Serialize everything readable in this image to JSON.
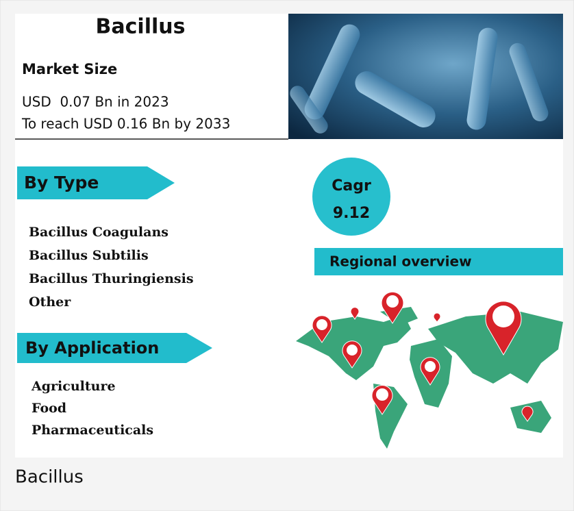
{
  "infographic": {
    "title": "Bacillus",
    "market_size": {
      "heading": "Market Size",
      "lines": [
        "USD  0.07 Bn in 2023",
        "To reach USD 0.16 Bn by 2033"
      ]
    },
    "by_type": {
      "heading": "By Type",
      "items": [
        "Bacillus Coagulans",
        "Bacillus Subtilis",
        "Bacillus Thuringiensis",
        "Other"
      ]
    },
    "by_application": {
      "heading": "By Application",
      "items": [
        "Agriculture",
        "Food",
        "Pharmaceuticals"
      ]
    },
    "cagr": {
      "label": "Cagr",
      "value": "9.12"
    },
    "regional": {
      "heading": "Regional overview"
    }
  },
  "caption": "Bacillus"
}
